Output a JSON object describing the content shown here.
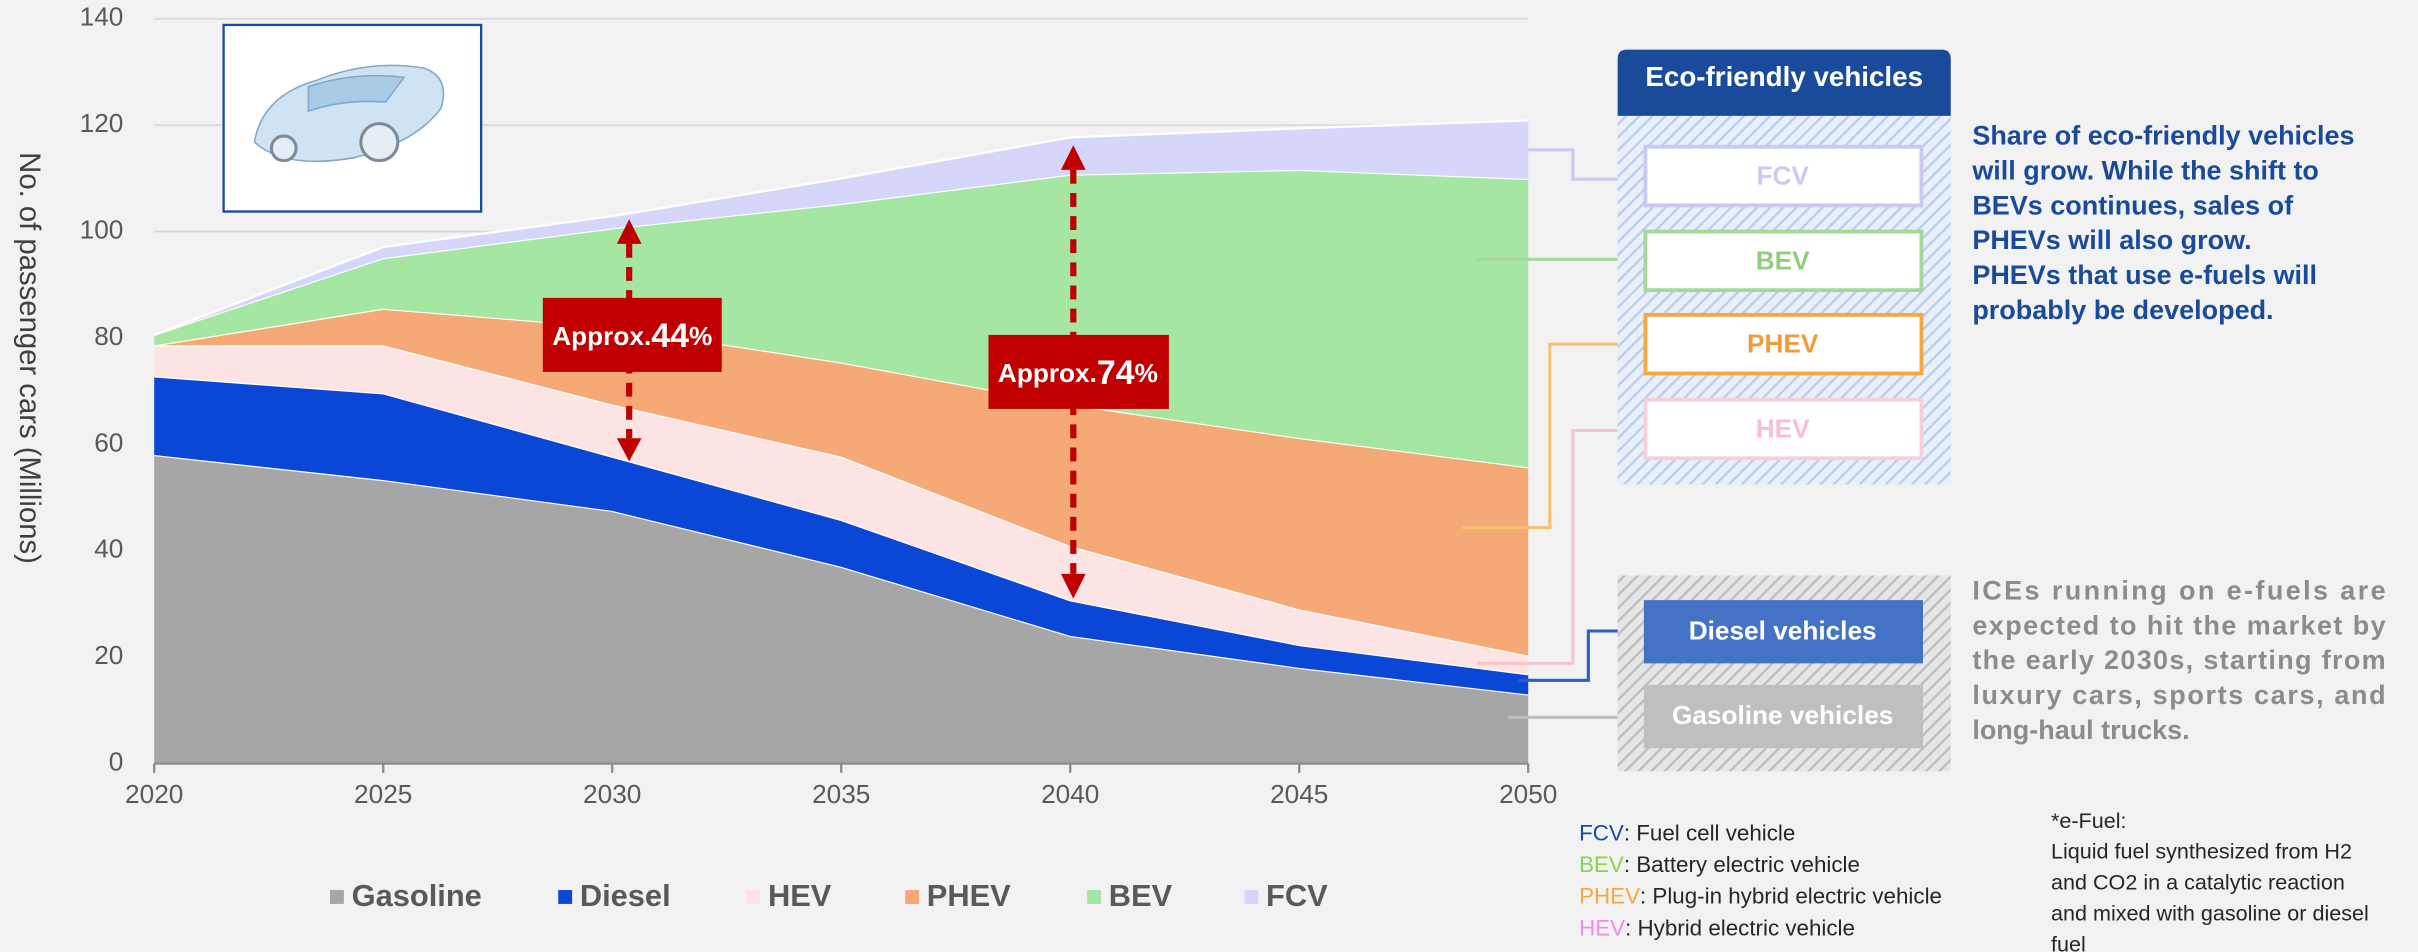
{
  "chart_data": {
    "type": "stacked-area",
    "y_label": "No. of passenger cars (Millions)",
    "x": [
      2020,
      2025,
      2030,
      2035,
      2040,
      2045,
      2050
    ],
    "xlim": [
      2020,
      2050
    ],
    "xticks": [
      2020,
      2025,
      2030,
      2035,
      2040,
      2045,
      2050
    ],
    "ylim": [
      0,
      140
    ],
    "yticks": [
      0,
      20,
      40,
      60,
      80,
      100,
      120,
      140
    ],
    "grid": true,
    "legend": "bottom",
    "series": [
      {
        "name": "Gasoline",
        "color": "#a6a6a6",
        "values": [
          58,
          53.3,
          47.5,
          37,
          24,
          18,
          13
        ]
      },
      {
        "name": "Diesel",
        "color": "#0a47d6",
        "values": [
          14.8,
          16.3,
          10.2,
          8.8,
          6.7,
          4.3,
          3.8
        ]
      },
      {
        "name": "HEV",
        "color": "#fde4e4",
        "values": [
          5.8,
          9,
          9.8,
          11.9,
          10.2,
          6.7,
          3.5
        ]
      },
      {
        "name": "PHEV",
        "color": "#f4a976",
        "values": [
          0,
          6.9,
          14.5,
          17.7,
          26.6,
          32.2,
          35.4
        ]
      },
      {
        "name": "BEV",
        "color": "#a5e6a3",
        "values": [
          2,
          9.5,
          18.6,
          29.8,
          43.2,
          50.4,
          54.2
        ]
      },
      {
        "name": "FCV",
        "color": "#d6d6fa",
        "values": [
          0,
          2.1,
          2.3,
          4.8,
          7,
          7.8,
          11
        ]
      }
    ],
    "annotations": [
      {
        "prefix": "Approx.",
        "number": "44",
        "suffix": "%"
      },
      {
        "prefix": "Approx.",
        "number": "74",
        "suffix": "%"
      }
    ]
  },
  "panel": {
    "eco_title": "Eco-friendly vehicles",
    "eco_boxes": [
      "FCV",
      "BEV",
      "PHEV",
      "HEV"
    ],
    "ice_boxes": [
      "Diesel vehicles",
      "Gasoline vehicles"
    ],
    "eco_text": [
      "Share of eco-friendly vehicles",
      "will grow. While the shift to",
      "BEVs continues, sales of",
      "PHEVs will also grow.",
      "PHEVs that use e-fuels will",
      "probably be developed."
    ],
    "ice_text": [
      "ICEs running on e-fuels are",
      "expected to hit the market by",
      "the early 2030s, starting from",
      "luxury cars, sports cars, and",
      "long-haul trucks."
    ]
  },
  "definitions": [
    {
      "term": "FCV",
      "definition": ": Fuel cell vehicle"
    },
    {
      "term": "BEV",
      "definition": ": Battery electric vehicle"
    },
    {
      "term": "PHEV",
      "definition": ": Plug-in hybrid electric vehicle"
    },
    {
      "term": "HEV",
      "definition": ": Hybrid electric vehicle"
    }
  ],
  "footnote": [
    "*e-Fuel:",
    "Liquid fuel synthesized from H2",
    "and CO2 in a catalytic reaction",
    "and mixed with gasoline or diesel",
    "fuel"
  ]
}
